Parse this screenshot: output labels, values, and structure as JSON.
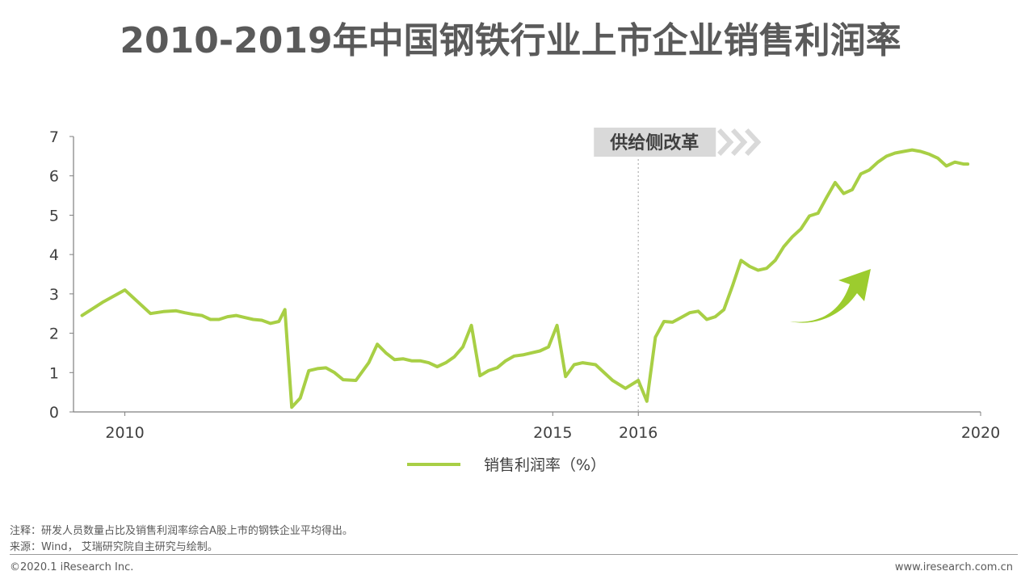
{
  "title": "2010-2019年中国钢铁行业上市企业销售利润率",
  "chart_data": {
    "type": "line",
    "title": "2010-2019年中国钢铁行业上市企业销售利润率",
    "xlabel": "",
    "ylabel": "",
    "xlim": [
      2009.4,
      2020
    ],
    "ylim": [
      0,
      7
    ],
    "yticks": [
      0,
      1,
      2,
      3,
      4,
      5,
      6,
      7
    ],
    "xticks": [
      2010,
      2015,
      2016,
      2020
    ],
    "grid": false,
    "legend_position": "bottom",
    "series": [
      {
        "name": "销售利润率（%）",
        "color": "#a8cf45",
        "x": [
          2009.5,
          2009.75,
          2010.0,
          2010.3,
          2010.45,
          2010.6,
          2010.7,
          2010.8,
          2010.9,
          2011.0,
          2011.1,
          2011.2,
          2011.3,
          2011.4,
          2011.5,
          2011.6,
          2011.7,
          2011.8,
          2011.87,
          2011.95,
          2012.05,
          2012.15,
          2012.25,
          2012.35,
          2012.45,
          2012.55,
          2012.7,
          2012.85,
          2012.95,
          2013.05,
          2013.15,
          2013.25,
          2013.35,
          2013.45,
          2013.55,
          2013.65,
          2013.75,
          2013.85,
          2013.95,
          2014.05,
          2014.15,
          2014.25,
          2014.35,
          2014.45,
          2014.55,
          2014.65,
          2014.75,
          2014.85,
          2014.95,
          2015.05,
          2015.15,
          2015.25,
          2015.35,
          2015.5,
          2015.7,
          2015.85,
          2016.0,
          2016.1,
          2016.2,
          2016.3,
          2016.4,
          2016.5,
          2016.6,
          2016.7,
          2016.8,
          2016.9,
          2017.0,
          2017.1,
          2017.2,
          2017.3,
          2017.4,
          2017.5,
          2017.6,
          2017.7,
          2017.8,
          2017.9,
          2018.0,
          2018.1,
          2018.2,
          2018.3,
          2018.4,
          2018.5,
          2018.6,
          2018.7,
          2018.8,
          2018.9,
          2019.0,
          2019.1,
          2019.2,
          2019.3,
          2019.4,
          2019.5,
          2019.6,
          2019.7,
          2019.8,
          2019.85
        ],
        "values": [
          2.45,
          2.8,
          3.1,
          2.5,
          2.55,
          2.57,
          2.52,
          2.48,
          2.45,
          2.35,
          2.35,
          2.42,
          2.45,
          2.4,
          2.35,
          2.33,
          2.25,
          2.3,
          2.6,
          0.12,
          0.35,
          1.05,
          1.1,
          1.12,
          1.0,
          0.82,
          0.8,
          1.25,
          1.72,
          1.5,
          1.33,
          1.35,
          1.3,
          1.3,
          1.25,
          1.15,
          1.25,
          1.4,
          1.65,
          2.2,
          0.92,
          1.05,
          1.12,
          1.3,
          1.42,
          1.45,
          1.5,
          1.55,
          1.65,
          2.2,
          0.9,
          1.2,
          1.25,
          1.2,
          0.8,
          0.6,
          0.8,
          0.27,
          1.9,
          2.3,
          2.28,
          2.4,
          2.52,
          2.56,
          2.35,
          2.42,
          2.6,
          3.2,
          3.85,
          3.7,
          3.6,
          3.65,
          3.85,
          4.2,
          4.45,
          4.65,
          4.98,
          5.05,
          5.45,
          5.83,
          5.55,
          5.65,
          6.05,
          6.15,
          6.35,
          6.5,
          6.58,
          6.62,
          6.66,
          6.62,
          6.55,
          6.45,
          6.25,
          6.35,
          6.3,
          6.3
        ]
      }
    ],
    "annotations": [
      {
        "text": "供给侧改革",
        "x": 2016
      }
    ]
  },
  "notes": [
    "注释：研发人员数量占比及销售利润率综合A股上市的钢铁企业平均得出。",
    "来源：Wind， 艾瑞研究院自主研究与绘制。"
  ],
  "footer": {
    "copyright": "©2020.1 iResearch Inc.",
    "website": "www.iresearch.com.cn"
  }
}
